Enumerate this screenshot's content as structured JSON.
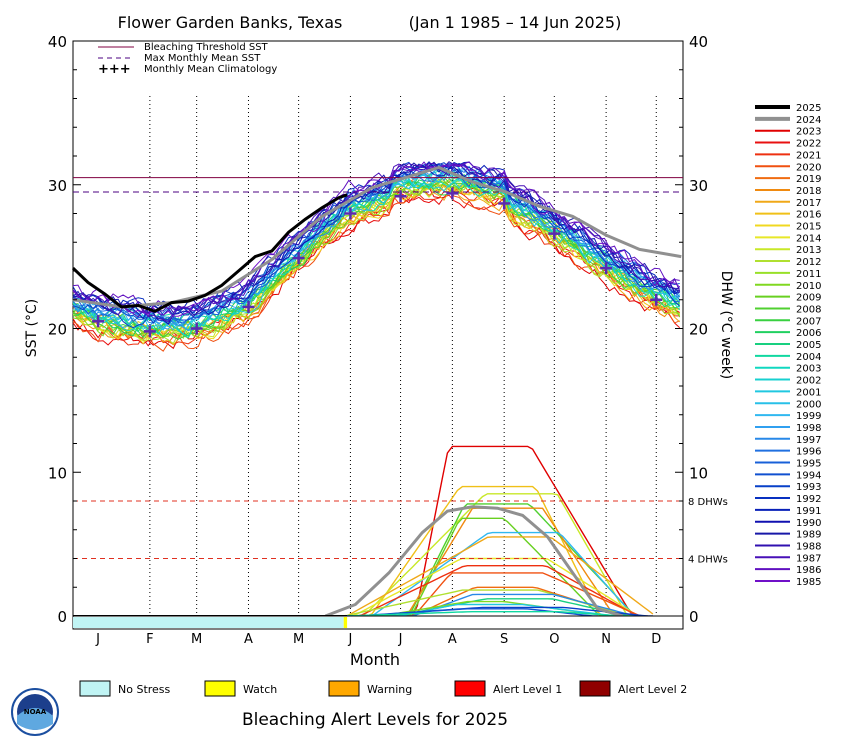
{
  "chart_data": {
    "type": "line",
    "title_site": "Flower Garden Banks, Texas",
    "title_period": "(Jan 1 1985 – 14 Jun 2025)",
    "xlabel": "Month",
    "ylabel_left": "SST (°C)",
    "ylabel_right": "DHW (°C week)",
    "ylim": [
      0,
      40
    ],
    "x_ticks": [
      "J",
      "F",
      "M",
      "A",
      "M",
      "J",
      "J",
      "A",
      "S",
      "O",
      "N",
      "D"
    ],
    "y_ticks": [
      "0",
      "10",
      "20",
      "30",
      "40"
    ],
    "bleaching_threshold_sst": 30.5,
    "max_monthly_mean_sst": 29.5,
    "dhw_thresholds": [
      {
        "value": 8,
        "label": "8 DHWs"
      },
      {
        "value": 4,
        "label": "4 DHWs"
      }
    ],
    "legend": [
      {
        "label": "Bleaching Threshold SST",
        "color": "#800040"
      },
      {
        "label": "Max Monthly Mean SST",
        "color": "#4b0082"
      },
      {
        "label": "Monthly Mean Climatology",
        "color": "#5a2ab0"
      }
    ],
    "climatology_months": [
      1,
      2,
      3,
      4,
      5,
      6,
      7,
      8,
      9,
      10,
      11,
      12
    ],
    "climatology": [
      20.5,
      19.8,
      20.0,
      21.5,
      24.9,
      28.0,
      29.2,
      29.4,
      28.7,
      26.6,
      24.2,
      22.0
    ],
    "series_2025_days": [
      1,
      10,
      20,
      30,
      40,
      50,
      60,
      70,
      80,
      90,
      100,
      110,
      120,
      130,
      140,
      150,
      160,
      165
    ],
    "series_2025": [
      24.2,
      23.2,
      22.4,
      21.5,
      21.6,
      21.2,
      21.8,
      21.9,
      22.3,
      23.0,
      24.0,
      25.0,
      25.4,
      26.7,
      27.6,
      28.4,
      29.1,
      29.3
    ],
    "series_2024_dhw_days": [
      152,
      170,
      190,
      210,
      225,
      240,
      255,
      270,
      285,
      300,
      315,
      330
    ],
    "series_2024_dhw": [
      0.0,
      0.8,
      3.0,
      5.8,
      7.3,
      7.6,
      7.5,
      7.0,
      5.5,
      3.0,
      0.5,
      0.0
    ],
    "series_2024_days": [
      1,
      30,
      60,
      90,
      120,
      150,
      180,
      200,
      220,
      240,
      260,
      280,
      300,
      320,
      340,
      365
    ],
    "series_2024": [
      22.0,
      21.5,
      21.8,
      22.6,
      24.8,
      27.8,
      29.8,
      30.5,
      31.2,
      30.2,
      29.5,
      28.5,
      27.8,
      26.5,
      25.5,
      25.0
    ],
    "legend_years": [
      "2025",
      "2024",
      "2023",
      "2022",
      "2021",
      "2020",
      "2019",
      "2018",
      "2017",
      "2016",
      "2015",
      "2014",
      "2013",
      "2012",
      "2011",
      "2010",
      "2009",
      "2008",
      "2007",
      "2006",
      "2005",
      "2004",
      "2003",
      "2002",
      "2001",
      "2000",
      "1999",
      "1998",
      "1997",
      "1996",
      "1995",
      "1994",
      "1993",
      "1992",
      "1991",
      "1990",
      "1989",
      "1988",
      "1987",
      "1986",
      "1985"
    ],
    "legend_year_colors": [
      "#000000",
      "#909090",
      "#e00000",
      "#e81010",
      "#ee3010",
      "#f05010",
      "#f06c10",
      "#f08a10",
      "#f0a818",
      "#f0c018",
      "#f0d820",
      "#e8e828",
      "#c8e828",
      "#b0e030",
      "#98e028",
      "#80d820",
      "#68d020",
      "#50d030",
      "#38d040",
      "#20d060",
      "#18d080",
      "#10d8a0",
      "#10d8c0",
      "#18d0d0",
      "#20c8e0",
      "#28c0e8",
      "#30b8f0",
      "#30a0f0",
      "#2888e8",
      "#2070e0",
      "#1860d8",
      "#1050d0",
      "#0840c8",
      "#0830c0",
      "#0820b8",
      "#1010b0",
      "#1818a8",
      "#3010b0",
      "#4810b8",
      "#6010c0",
      "#7010c8"
    ],
    "alert_title": "Bleaching Alert Levels for 2025",
    "alert_bar": [
      {
        "level": "No Stress",
        "start_day": 1,
        "end_day": 163
      },
      {
        "level": "Watch",
        "start_day": 163,
        "end_day": 165
      }
    ],
    "alert_levels": [
      {
        "label": "No Stress",
        "color": "#c0f4f4"
      },
      {
        "label": "Watch",
        "color": "#ffff00"
      },
      {
        "label": "Warning",
        "color": "#ffa800"
      },
      {
        "label": "Alert Level 1",
        "color": "#ff0000"
      },
      {
        "label": "Alert Level 2",
        "color": "#900000"
      }
    ],
    "logo_text": "NOAA"
  }
}
